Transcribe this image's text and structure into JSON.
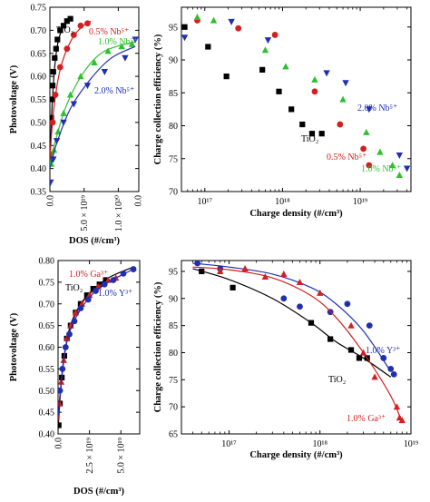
{
  "figure": {
    "panel_names": [
      "top-left-photovoltage-vs-dos-nb",
      "top-right-efficiency-vs-density-nb",
      "bottom-left-photovoltage-vs-dos-ga-y",
      "bottom-right-efficiency-vs-density-ga-y"
    ]
  },
  "chart_data": [
    {
      "id": "tl",
      "type": "scatter",
      "title": "",
      "xlabel": "DOS (#/cm³)",
      "ylabel": "Photovoltage (V)",
      "xlim": [
        0,
        1.3e+20
      ],
      "ylim": [
        0.35,
        0.75
      ],
      "x_ticks": [
        0,
        5e+19,
        1e+20
      ],
      "x_tick_labels": [
        "0.0",
        "5.0 × 10¹⁹",
        "1.0 × 10²⁰"
      ],
      "extra_x_tick_label": "0.0",
      "y_ticks": [
        0.35,
        0.4,
        0.45,
        0.5,
        0.55,
        0.6,
        0.65,
        0.7,
        0.75
      ],
      "y_tick_labels": [
        "0.35",
        "0.40",
        "0.45",
        "0.50",
        "0.55",
        "0.60",
        "0.65",
        "0.70",
        "0.75"
      ],
      "x_tick_rotation": -90,
      "grid": false,
      "series": [
        {
          "name": "TiO₂",
          "color": "#000000",
          "marker": "square",
          "x": [
            5e+17,
            2e+18,
            3e+18,
            4e+18,
            5e+18,
            7e+18,
            9e+18,
            1.1e+19,
            1.5e+19,
            2e+19,
            2.5e+19,
            3e+19
          ],
          "y": [
            0.42,
            0.51,
            0.55,
            0.58,
            0.61,
            0.64,
            0.66,
            0.68,
            0.7,
            0.71,
            0.72,
            0.725
          ],
          "fit": [
            [
              0,
              0.415
            ],
            [
              3e+18,
              0.53
            ],
            [
              7e+18,
              0.62
            ],
            [
              1.2e+19,
              0.675
            ],
            [
              2e+19,
              0.71
            ],
            [
              3e+19,
              0.73
            ]
          ]
        },
        {
          "name": "0.5% Nb⁵⁺",
          "color": "#d22020",
          "marker": "circle",
          "x": [
            1e+18,
            4e+18,
            8e+18,
            1.5e+19,
            2.5e+19,
            3.5e+19,
            4.5e+19,
            5.5e+19
          ],
          "y": [
            0.43,
            0.5,
            0.56,
            0.62,
            0.66,
            0.69,
            0.71,
            0.715
          ],
          "fit": [
            [
              0,
              0.42
            ],
            [
              5e+18,
              0.52
            ],
            [
              1.5e+19,
              0.615
            ],
            [
              3e+19,
              0.675
            ],
            [
              4.5e+19,
              0.705
            ],
            [
              6e+19,
              0.72
            ]
          ]
        },
        {
          "name": "1.0% Nb⁵⁺",
          "color": "#2fc02f",
          "marker": "triangle-up",
          "x": [
            2e+18,
            6e+18,
            1.2e+19,
            2e+19,
            3e+19,
            4.5e+19,
            6.5e+19,
            8.5e+19,
            1.05e+20,
            1.2e+20
          ],
          "y": [
            0.41,
            0.44,
            0.48,
            0.52,
            0.56,
            0.6,
            0.63,
            0.655,
            0.665,
            0.67
          ],
          "fit": [
            [
              0,
              0.41
            ],
            [
              1e+19,
              0.47
            ],
            [
              2.5e+19,
              0.54
            ],
            [
              5e+19,
              0.61
            ],
            [
              8e+19,
              0.655
            ],
            [
              1.25e+20,
              0.675
            ]
          ]
        },
        {
          "name": "2.0% Nb⁵⁺",
          "color": "#1f2fb0",
          "marker": "triangle-down",
          "x": [
            1e+18,
            5e+18,
            1e+19,
            2e+19,
            3.5e+19,
            5.5e+19,
            8e+19,
            1.1e+20,
            1.25e+20
          ],
          "y": [
            0.37,
            0.42,
            0.46,
            0.5,
            0.54,
            0.58,
            0.61,
            0.64,
            0.68
          ],
          "fit": [
            [
              0,
              0.4
            ],
            [
              1e+19,
              0.455
            ],
            [
              3e+19,
              0.53
            ],
            [
              6e+19,
              0.595
            ],
            [
              9e+19,
              0.64
            ],
            [
              1.25e+20,
              0.665
            ]
          ]
        }
      ],
      "annotations": [
        "TiO₂",
        "0.5% Nb⁵⁺",
        "1.0% Nb⁵⁺",
        "2.0% Nb⁵⁺"
      ]
    },
    {
      "id": "tr",
      "type": "scatter",
      "title": "",
      "xlabel": "Charge density (#/cm³)",
      "ylabel": "Charge collection efficiency (%)",
      "x_scale": "log",
      "xlim": [
        5e+16,
        4.5e+19
      ],
      "ylim": [
        70,
        98
      ],
      "x_ticks": [
        1e+17,
        1e+18,
        1e+19
      ],
      "x_tick_labels": [
        "10¹⁷",
        "10¹⁸",
        "10¹⁹"
      ],
      "y_ticks": [
        70,
        75,
        80,
        85,
        90,
        95
      ],
      "y_tick_labels": [
        "70",
        "75",
        "80",
        "85",
        "90",
        "95"
      ],
      "grid": false,
      "series": [
        {
          "name": "TiO₂",
          "color": "#000000",
          "marker": "square",
          "x": [
            5.5e+16,
            1.1e+17,
            1.9e+17,
            5.5e+17,
            9e+17,
            1.3e+18,
            1.8e+18,
            2.4e+18,
            3.2e+18
          ],
          "y": [
            95,
            92,
            87.5,
            88.5,
            85.2,
            82.5,
            80.2,
            78.8,
            78.8
          ]
        },
        {
          "name": "0.5% Nb⁵⁺",
          "color": "#d22020",
          "marker": "circle",
          "x": [
            8e+16,
            2.7e+17,
            8e+17,
            2.6e+18,
            5.5e+18,
            1.1e+19,
            1.3e+19
          ],
          "y": [
            96.0,
            94.8,
            93.8,
            85.2,
            80.2,
            76.5,
            74.0
          ]
        },
        {
          "name": "1.0% Nb⁵⁺",
          "color": "#2fc02f",
          "marker": "triangle-up",
          "x": [
            8e+16,
            1.3e+17,
            6e+17,
            1.1e+18,
            2.6e+18,
            6e+18,
            1.2e+19,
            1.8e+19,
            2.6e+19,
            3.2e+19
          ],
          "y": [
            96.5,
            96.0,
            91.5,
            89.0,
            87.0,
            84.0,
            79.0,
            76.0,
            74.0,
            72.5
          ]
        },
        {
          "name": "2.0% Nb⁵⁺",
          "color": "#1f2fb0",
          "marker": "triangle-down",
          "x": [
            5.5e+16,
            2.2e+17,
            6.5e+17,
            3.7e+18,
            6.5e+18,
            1.3e+19,
            3.2e+19,
            4e+19
          ],
          "y": [
            93.4,
            95.8,
            93.0,
            88.0,
            86.5,
            82.5,
            75.5,
            73.5
          ]
        }
      ],
      "annotations": [
        "2.0% Nb⁵⁺",
        "TiO₂",
        "0.5% Nb⁵⁺",
        "1.0% Nb⁵⁺"
      ]
    },
    {
      "id": "bl",
      "type": "scatter",
      "title": "",
      "xlabel": "DOS (#/cm³)",
      "ylabel": "Photovoltage (V)",
      "xlim": [
        0,
        6.5e+19
      ],
      "ylim": [
        0.4,
        0.8
      ],
      "x_ticks": [
        0,
        2.5e+19,
        5e+19
      ],
      "x_tick_labels": [
        "0.0",
        "2.5 × 10¹⁹",
        "5.0 × 10¹⁹"
      ],
      "y_ticks": [
        0.4,
        0.45,
        0.5,
        0.55,
        0.6,
        0.65,
        0.7,
        0.75,
        0.8
      ],
      "y_tick_labels": [
        "0.40",
        "0.45",
        "0.50",
        "0.55",
        "0.60",
        "0.65",
        "0.70",
        "0.75",
        "0.80"
      ],
      "x_tick_rotation": -90,
      "grid": false,
      "series": [
        {
          "name": "TiO₂",
          "color": "#000000",
          "marker": "square",
          "x": [
            5e+17,
            1.5e+18,
            3e+18,
            5e+18,
            7e+18,
            1e+19,
            1.4e+19,
            1.8e+19,
            2.3e+19,
            2.8e+19,
            3.3e+19,
            3.8e+19
          ],
          "y": [
            0.42,
            0.47,
            0.53,
            0.58,
            0.62,
            0.65,
            0.68,
            0.7,
            0.72,
            0.735,
            0.745,
            0.755
          ],
          "fit": [
            [
              0,
              0.41
            ],
            [
              3e+18,
              0.53
            ],
            [
              8e+18,
              0.63
            ],
            [
              1.5e+19,
              0.685
            ],
            [
              2.5e+19,
              0.725
            ],
            [
              4e+19,
              0.76
            ],
            [
              6e+19,
              0.785
            ]
          ]
        },
        {
          "name": "1.0% Ga³⁺",
          "color": "#d22020",
          "marker": "triangle-up",
          "x": [
            1e+18,
            2.5e+18,
            4.5e+18,
            7e+18,
            1e+19,
            1.4e+19,
            1.9e+19,
            2.5e+19,
            3.2e+19,
            4e+19,
            4.6e+19
          ],
          "y": [
            0.47,
            0.52,
            0.57,
            0.62,
            0.65,
            0.68,
            0.7,
            0.72,
            0.74,
            0.755,
            0.76
          ],
          "fit": [
            [
              0,
              0.43
            ],
            [
              4e+18,
              0.56
            ],
            [
              1e+19,
              0.645
            ],
            [
              2e+19,
              0.705
            ],
            [
              3.5e+19,
              0.745
            ],
            [
              5e+19,
              0.765
            ]
          ]
        },
        {
          "name": "1.0% Y³⁺",
          "color": "#1f2fb0",
          "marker": "circle",
          "x": [
            1.5e+18,
            3.5e+18,
            6e+18,
            9e+18,
            1.3e+19,
            1.8e+19,
            2.4e+19,
            3e+19,
            3.7e+19,
            4.4e+19,
            5.2e+19,
            6e+19
          ],
          "y": [
            0.5,
            0.55,
            0.6,
            0.63,
            0.66,
            0.69,
            0.71,
            0.73,
            0.745,
            0.755,
            0.77,
            0.78
          ],
          "fit": [
            [
              0,
              0.44
            ],
            [
              5e+18,
              0.585
            ],
            [
              1.2e+19,
              0.655
            ],
            [
              2.5e+19,
              0.715
            ],
            [
              4e+19,
              0.75
            ],
            [
              6e+19,
              0.78
            ]
          ]
        }
      ],
      "annotations": [
        "1.0% Ga³⁺",
        "TiO₂",
        "1.0% Y³⁺"
      ]
    },
    {
      "id": "br",
      "type": "scatter",
      "title": "",
      "xlabel": "Charge density (#/cm³)",
      "ylabel": "Charge collection efficiency (%)",
      "x_scale": "log",
      "xlim": [
        3e+16,
        1e+19
      ],
      "ylim": [
        65,
        97
      ],
      "x_ticks": [
        1e+17,
        1e+18,
        1e+19
      ],
      "x_tick_labels": [
        "10¹⁷",
        "10¹⁸",
        "10¹⁹"
      ],
      "y_ticks": [
        65,
        70,
        75,
        80,
        85,
        90,
        95
      ],
      "y_tick_labels": [
        "65",
        "70",
        "75",
        "80",
        "85",
        "90",
        "95"
      ],
      "grid": false,
      "series": [
        {
          "name": "TiO₂",
          "color": "#000000",
          "marker": "square",
          "x": [
            5e+16,
            1.1e+17,
            8e+17,
            1.3e+18,
            2.2e+18,
            2.7e+18,
            3.3e+18
          ],
          "y": [
            95.0,
            92.0,
            85.5,
            82.5,
            80.5,
            79.0,
            79.0
          ],
          "fit": [
            [
              4e+16,
              95.5
            ],
            [
              1e+17,
              93.5
            ],
            [
              3e+17,
              90
            ],
            [
              8e+17,
              85.5
            ],
            [
              1.5e+18,
              82
            ],
            [
              3e+18,
              79
            ],
            [
              6e+18,
              75.5
            ]
          ]
        },
        {
          "name": "1.0% Y³⁺",
          "color": "#1f2fb0",
          "marker": "circle",
          "x": [
            4.5e+16,
            8e+16,
            4e+17,
            6e+17,
            1.3e+18,
            2e+18,
            3.5e+18,
            5e+18,
            6e+18,
            6.5e+18
          ],
          "y": [
            96.5,
            95.5,
            90.0,
            88.5,
            87.5,
            89.0,
            85.0,
            79.0,
            77.0,
            76.0
          ],
          "fit": [
            [
              4e+16,
              96.5
            ],
            [
              1e+17,
              95.8
            ],
            [
              3e+17,
              94.5
            ],
            [
              8e+17,
              92
            ],
            [
              1.5e+18,
              89
            ],
            [
              3e+18,
              84
            ],
            [
              6e+18,
              76.5
            ]
          ]
        },
        {
          "name": "1.0% Ga³⁺",
          "color": "#d22020",
          "marker": "triangle-up",
          "x": [
            8e+16,
            1.5e+17,
            2.5e+17,
            4e+17,
            6e+17,
            1e+18,
            2.2e+18,
            3e+18,
            4e+18,
            7e+18,
            7.5e+18,
            8e+18
          ],
          "y": [
            95.0,
            95.5,
            94.0,
            94.5,
            93.0,
            91.0,
            85.0,
            80.0,
            75.5,
            70.0,
            68.0,
            67.5
          ],
          "fit": [
            [
              4e+16,
              95.8
            ],
            [
              1e+17,
              95.3
            ],
            [
              3e+17,
              93.8
            ],
            [
              8e+17,
              90.5
            ],
            [
              1.5e+18,
              86.5
            ],
            [
              3e+18,
              80
            ],
            [
              6e+18,
              72
            ],
            [
              8e+18,
              67
            ]
          ]
        }
      ],
      "annotations": [
        "1.0% Y³⁺",
        "TiO₂",
        "1.0% Ga³⁺"
      ]
    }
  ]
}
